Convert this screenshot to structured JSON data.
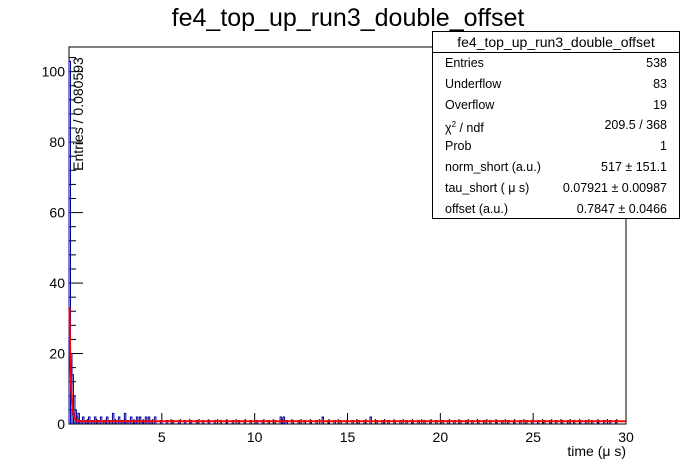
{
  "chart_data": {
    "type": "bar",
    "title": "fe4_top_up_run3_double_offset",
    "xlabel": "time (μ s)",
    "ylabel": "Entries / 0.080593",
    "xlim": [
      0,
      30
    ],
    "ylim": [
      0,
      107
    ],
    "x_ticks": [
      5,
      10,
      15,
      20,
      25,
      30
    ],
    "y_ticks": [
      0,
      20,
      40,
      60,
      80,
      100
    ],
    "grid": false,
    "histogram_color": "#000099",
    "fit_color": "#ff0000",
    "histogram_bins": [
      {
        "x": 0.04,
        "y": 103
      },
      {
        "x": 0.12,
        "y": 20
      },
      {
        "x": 0.2,
        "y": 14
      },
      {
        "x": 0.28,
        "y": 8
      },
      {
        "x": 0.36,
        "y": 4
      },
      {
        "x": 0.44,
        "y": 2
      },
      {
        "x": 0.52,
        "y": 3
      },
      {
        "x": 0.6,
        "y": 1
      },
      {
        "x": 0.68,
        "y": 1
      },
      {
        "x": 0.77,
        "y": 2
      },
      {
        "x": 0.93,
        "y": 1
      },
      {
        "x": 1.09,
        "y": 2
      },
      {
        "x": 1.25,
        "y": 1
      },
      {
        "x": 1.41,
        "y": 2
      },
      {
        "x": 1.57,
        "y": 1
      },
      {
        "x": 1.73,
        "y": 2
      },
      {
        "x": 1.9,
        "y": 1
      },
      {
        "x": 2.06,
        "y": 2
      },
      {
        "x": 2.22,
        "y": 1
      },
      {
        "x": 2.38,
        "y": 3
      },
      {
        "x": 2.54,
        "y": 1
      },
      {
        "x": 2.7,
        "y": 2
      },
      {
        "x": 2.86,
        "y": 1
      },
      {
        "x": 3.02,
        "y": 3
      },
      {
        "x": 3.18,
        "y": 1
      },
      {
        "x": 3.35,
        "y": 2
      },
      {
        "x": 3.51,
        "y": 1
      },
      {
        "x": 3.67,
        "y": 2
      },
      {
        "x": 3.83,
        "y": 2
      },
      {
        "x": 3.99,
        "y": 1
      },
      {
        "x": 4.15,
        "y": 2
      },
      {
        "x": 4.31,
        "y": 2
      },
      {
        "x": 4.47,
        "y": 1
      },
      {
        "x": 4.64,
        "y": 2
      },
      {
        "x": 4.96,
        "y": 1
      },
      {
        "x": 5.28,
        "y": 1
      },
      {
        "x": 5.6,
        "y": 1
      },
      {
        "x": 5.93,
        "y": 1
      },
      {
        "x": 6.25,
        "y": 1
      },
      {
        "x": 6.57,
        "y": 1
      },
      {
        "x": 6.89,
        "y": 1
      },
      {
        "x": 7.22,
        "y": 1
      },
      {
        "x": 7.54,
        "y": 1
      },
      {
        "x": 7.86,
        "y": 1
      },
      {
        "x": 8.18,
        "y": 1
      },
      {
        "x": 8.5,
        "y": 1
      },
      {
        "x": 8.83,
        "y": 1
      },
      {
        "x": 9.15,
        "y": 1
      },
      {
        "x": 9.47,
        "y": 1
      },
      {
        "x": 9.79,
        "y": 1
      },
      {
        "x": 10.12,
        "y": 1
      },
      {
        "x": 10.44,
        "y": 1
      },
      {
        "x": 10.76,
        "y": 1
      },
      {
        "x": 11.08,
        "y": 1
      },
      {
        "x": 11.41,
        "y": 2
      },
      {
        "x": 11.57,
        "y": 2
      },
      {
        "x": 11.73,
        "y": 1
      },
      {
        "x": 12.05,
        "y": 1
      },
      {
        "x": 12.38,
        "y": 1
      },
      {
        "x": 12.7,
        "y": 1
      },
      {
        "x": 13.02,
        "y": 1
      },
      {
        "x": 13.34,
        "y": 1
      },
      {
        "x": 13.67,
        "y": 2
      },
      {
        "x": 13.99,
        "y": 1
      },
      {
        "x": 14.31,
        "y": 1
      },
      {
        "x": 14.63,
        "y": 1
      },
      {
        "x": 14.96,
        "y": 1
      },
      {
        "x": 15.28,
        "y": 1
      },
      {
        "x": 15.6,
        "y": 1
      },
      {
        "x": 15.92,
        "y": 1
      },
      {
        "x": 16.25,
        "y": 2
      },
      {
        "x": 16.57,
        "y": 1
      },
      {
        "x": 16.89,
        "y": 1
      },
      {
        "x": 17.21,
        "y": 1
      },
      {
        "x": 17.54,
        "y": 1
      },
      {
        "x": 17.86,
        "y": 1
      },
      {
        "x": 18.18,
        "y": 1
      },
      {
        "x": 18.5,
        "y": 1
      },
      {
        "x": 18.83,
        "y": 1
      },
      {
        "x": 19.15,
        "y": 1
      },
      {
        "x": 19.47,
        "y": 1
      },
      {
        "x": 19.79,
        "y": 1
      },
      {
        "x": 20.12,
        "y": 1
      },
      {
        "x": 20.44,
        "y": 1
      },
      {
        "x": 20.76,
        "y": 1
      },
      {
        "x": 21.08,
        "y": 1
      },
      {
        "x": 21.4,
        "y": 1
      },
      {
        "x": 21.73,
        "y": 1
      },
      {
        "x": 22.05,
        "y": 1
      },
      {
        "x": 22.37,
        "y": 1
      },
      {
        "x": 22.69,
        "y": 1
      },
      {
        "x": 23.02,
        "y": 1
      },
      {
        "x": 23.34,
        "y": 1
      },
      {
        "x": 23.66,
        "y": 1
      },
      {
        "x": 23.98,
        "y": 1
      },
      {
        "x": 24.31,
        "y": 1
      },
      {
        "x": 24.63,
        "y": 1
      },
      {
        "x": 24.95,
        "y": 1
      },
      {
        "x": 25.27,
        "y": 1
      },
      {
        "x": 25.6,
        "y": 1
      },
      {
        "x": 25.92,
        "y": 1
      },
      {
        "x": 26.24,
        "y": 1
      },
      {
        "x": 26.56,
        "y": 1
      },
      {
        "x": 26.89,
        "y": 1
      },
      {
        "x": 27.21,
        "y": 1
      },
      {
        "x": 27.53,
        "y": 1
      },
      {
        "x": 27.85,
        "y": 1
      },
      {
        "x": 28.18,
        "y": 1
      },
      {
        "x": 28.5,
        "y": 1
      },
      {
        "x": 28.82,
        "y": 1
      },
      {
        "x": 29.14,
        "y": 1
      },
      {
        "x": 29.47,
        "y": 1
      }
    ],
    "fit_function": {
      "form": "norm_short * exp(-t / tau_short) * 0.080593 + offset",
      "norm_short": 517,
      "tau_short": 0.07921,
      "offset": 0.7847
    }
  },
  "stats_box": {
    "title": "fe4_top_up_run3_double_offset",
    "rows": [
      {
        "key": "Entries",
        "value": "538"
      },
      {
        "key": "Underflow",
        "value": "83"
      },
      {
        "key": "Overflow",
        "value": "19"
      },
      {
        "key": "chi2_ndf",
        "value": "209.5 / 368"
      },
      {
        "key": "Prob",
        "value": "1"
      },
      {
        "key": "norm_short (a.u.)",
        "value": "517 ± 151.1"
      },
      {
        "key": "tau_short ( μ s)",
        "value": "0.07921 ± 0.00987"
      },
      {
        "key": "offset (a.u.)",
        "value": "0.7847 ± 0.0466"
      }
    ]
  }
}
